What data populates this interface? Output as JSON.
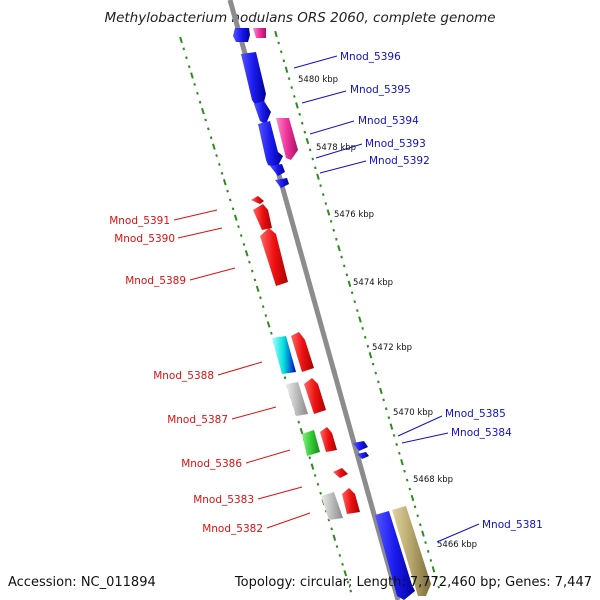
{
  "title": "Methylobacterium nodulans ORS 2060, complete genome",
  "footer": {
    "accession": "Accession: NC_011894",
    "summary": "Topology: circular; Length: 7,772,460 bp; Genes: 7,447"
  },
  "ticks": [
    "5480 kbp",
    "5478 kbp",
    "5476 kbp",
    "5474 kbp",
    "5472 kbp",
    "5470 kbp",
    "5468 kbp",
    "5466 kbp"
  ],
  "genes_forward": [
    "Mnod_5396",
    "Mnod_5395",
    "Mnod_5394",
    "Mnod_5393",
    "Mnod_5392",
    "Mnod_5385",
    "Mnod_5384",
    "Mnod_5381"
  ],
  "genes_reverse": [
    "Mnod_5391",
    "Mnod_5390",
    "Mnod_5389",
    "Mnod_5388",
    "Mnod_5387",
    "Mnod_5386",
    "Mnod_5383",
    "Mnod_5382"
  ],
  "colors": {
    "backbone": "#8c8c8c",
    "dots": "#2e8b1e",
    "forward_label": "#1010cc",
    "reverse_label": "#dd1111",
    "blue": "#1a1aee",
    "red": "#ee1111",
    "pink": "#ee3399",
    "gray": "#bbbbbb",
    "green": "#33cc33",
    "cyan": "#00dddd",
    "olive": "#b5a56a"
  }
}
